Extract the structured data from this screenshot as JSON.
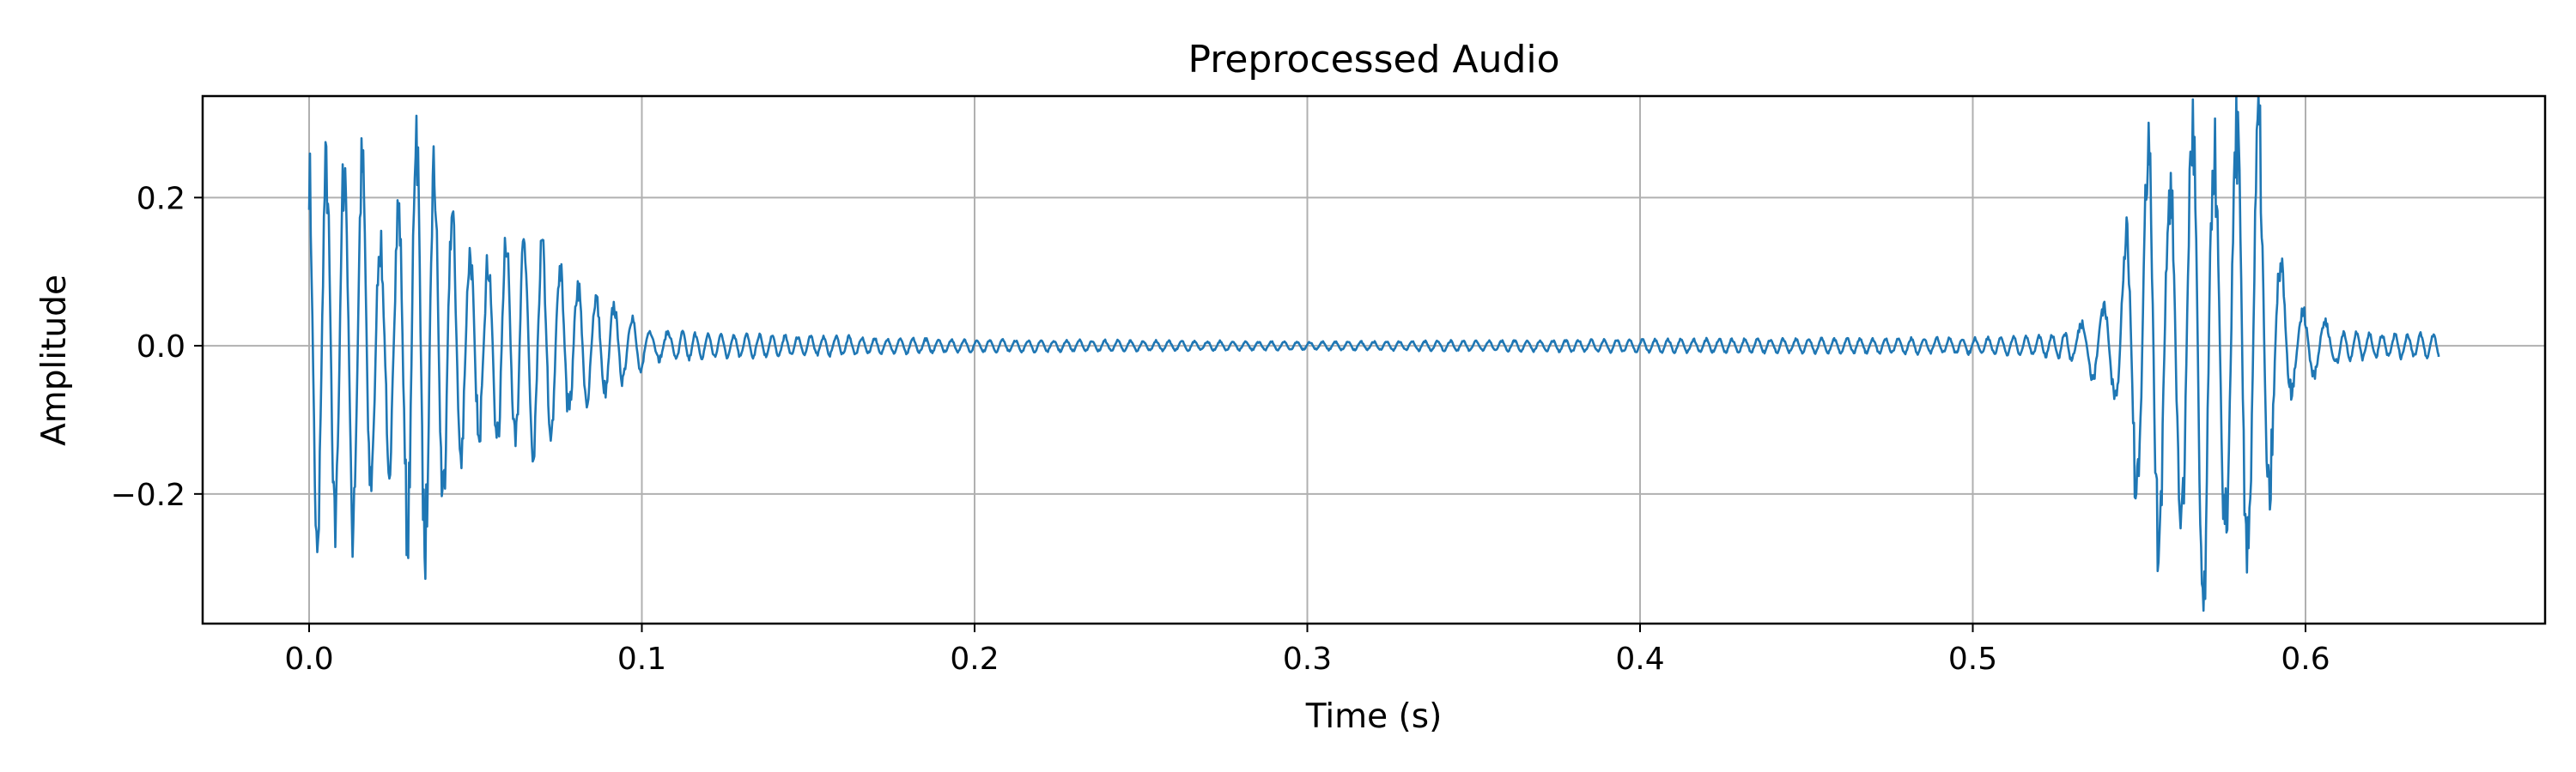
{
  "chart_data": {
    "type": "line",
    "title": "Preprocessed Audio",
    "xlabel": "Time (s)",
    "ylabel": "Amplitude",
    "xlim": [
      -0.032,
      0.672
    ],
    "ylim": [
      -0.375,
      0.337
    ],
    "xticks": [
      0.0,
      0.1,
      0.2,
      0.3,
      0.4,
      0.5,
      0.6
    ],
    "xtick_labels": [
      "0.0",
      "0.1",
      "0.2",
      "0.3",
      "0.4",
      "0.5",
      "0.6"
    ],
    "yticks": [
      -0.2,
      0.0,
      0.2
    ],
    "ytick_labels": [
      "−0.2",
      "0.0",
      "0.2"
    ],
    "grid": true,
    "line_color": "#1f77b4",
    "series": [
      {
        "x": [
          0.0,
          0.003,
          0.006,
          0.011,
          0.016,
          0.022,
          0.027,
          0.032,
          0.037,
          0.048,
          0.054,
          0.059,
          0.064,
          0.07,
          0.075,
          0.08,
          0.086,
          0.091,
          0.097,
          0.102,
          0.11,
          0.12,
          0.13,
          0.14,
          0.15,
          0.16,
          0.17,
          0.2,
          0.3,
          0.4,
          0.5,
          0.52,
          0.53,
          0.535,
          0.542,
          0.548,
          0.554,
          0.559,
          0.564,
          0.569,
          0.574,
          0.58,
          0.586,
          0.591,
          0.597,
          0.602,
          0.61,
          0.62,
          0.63,
          0.64
        ],
        "y": [
          0.255,
          -0.255,
          0.225,
          0.245,
          0.235,
          0.125,
          0.185,
          0.305,
          0.235,
          0.125,
          0.11,
          0.155,
          0.135,
          0.13,
          0.105,
          0.085,
          0.065,
          0.055,
          0.04,
          0.02,
          0.018,
          0.015,
          0.015,
          0.013,
          0.012,
          0.012,
          0.01,
          0.008,
          0.005,
          0.008,
          0.01,
          0.012,
          0.02,
          0.04,
          0.065,
          -0.18,
          0.305,
          -0.205,
          0.26,
          -0.34,
          0.225,
          0.295,
          -0.29,
          0.13,
          -0.045,
          0.045,
          0.02,
          0.015,
          0.015,
          -0.015
        ],
        "envelope": [
          0.255,
          0.255,
          0.225,
          0.245,
          0.24,
          0.125,
          0.185,
          0.305,
          0.235,
          0.125,
          0.11,
          0.155,
          0.135,
          0.13,
          0.105,
          0.085,
          0.065,
          0.055,
          0.04,
          0.02,
          0.018,
          0.015,
          0.015,
          0.013,
          0.012,
          0.012,
          0.01,
          0.008,
          0.005,
          0.008,
          0.01,
          0.012,
          0.02,
          0.04,
          0.065,
          0.18,
          0.305,
          0.205,
          0.26,
          0.34,
          0.225,
          0.295,
          0.29,
          0.13,
          0.045,
          0.045,
          0.02,
          0.015,
          0.015,
          0.015
        ]
      }
    ]
  }
}
